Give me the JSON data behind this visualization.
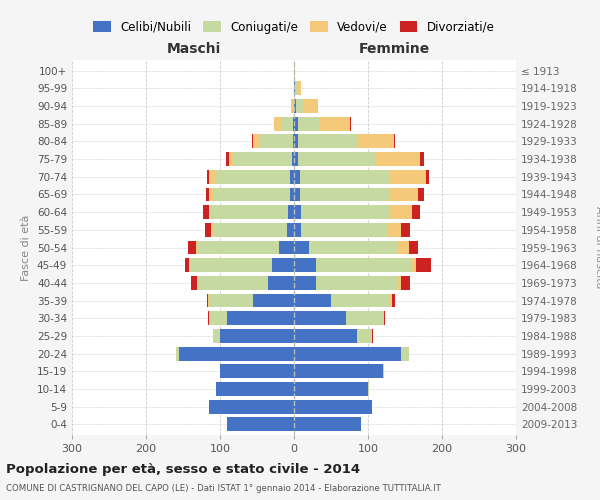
{
  "age_groups": [
    "0-4",
    "5-9",
    "10-14",
    "15-19",
    "20-24",
    "25-29",
    "30-34",
    "35-39",
    "40-44",
    "45-49",
    "50-54",
    "55-59",
    "60-64",
    "65-69",
    "70-74",
    "75-79",
    "80-84",
    "85-89",
    "90-94",
    "95-99",
    "100+"
  ],
  "birth_years": [
    "2009-2013",
    "2004-2008",
    "1999-2003",
    "1994-1998",
    "1989-1993",
    "1984-1988",
    "1979-1983",
    "1974-1978",
    "1969-1973",
    "1964-1968",
    "1959-1963",
    "1954-1958",
    "1949-1953",
    "1944-1948",
    "1939-1943",
    "1934-1938",
    "1929-1933",
    "1924-1928",
    "1919-1923",
    "1914-1918",
    "≤ 1913"
  ],
  "males": {
    "coniugato": [
      0,
      0,
      0,
      0,
      5,
      10,
      25,
      60,
      95,
      110,
      110,
      100,
      105,
      105,
      100,
      80,
      45,
      15,
      2,
      0,
      0
    ],
    "celibe": [
      90,
      115,
      105,
      100,
      155,
      100,
      90,
      55,
      35,
      30,
      20,
      10,
      8,
      5,
      5,
      3,
      2,
      2,
      0,
      0,
      0
    ],
    "vedovo": [
      0,
      0,
      0,
      0,
      0,
      0,
      0,
      1,
      1,
      2,
      3,
      2,
      2,
      5,
      10,
      5,
      8,
      10,
      2,
      0,
      0
    ],
    "divorziato": [
      0,
      0,
      0,
      0,
      0,
      0,
      1,
      2,
      8,
      5,
      10,
      8,
      8,
      4,
      2,
      4,
      2,
      0,
      0,
      0,
      0
    ]
  },
  "females": {
    "coniugata": [
      0,
      0,
      1,
      2,
      10,
      20,
      50,
      80,
      110,
      130,
      120,
      115,
      120,
      120,
      120,
      105,
      80,
      30,
      10,
      2,
      1
    ],
    "nubile": [
      90,
      105,
      100,
      120,
      145,
      85,
      70,
      50,
      30,
      30,
      20,
      10,
      10,
      8,
      8,
      5,
      5,
      5,
      3,
      2,
      0
    ],
    "vedova": [
      0,
      0,
      0,
      0,
      0,
      1,
      1,
      2,
      5,
      5,
      15,
      20,
      30,
      40,
      50,
      60,
      50,
      40,
      20,
      5,
      1
    ],
    "divorziata": [
      0,
      0,
      0,
      0,
      0,
      1,
      2,
      5,
      12,
      20,
      12,
      12,
      10,
      8,
      5,
      5,
      2,
      2,
      0,
      0,
      0
    ]
  },
  "colors": {
    "celibe": "#4472C4",
    "coniugato": "#c5d9a0",
    "vedovo": "#f4c97a",
    "divorziato": "#cc2222"
  },
  "xlim": 300,
  "title": "Popolazione per età, sesso e stato civile - 2014",
  "subtitle": "COMUNE DI CASTRIGNANO DEL CAPO (LE) - Dati ISTAT 1° gennaio 2014 - Elaborazione TUTTITALIA.IT",
  "ylabel": "Fasce di età",
  "ylabel_right": "Anni di nascita",
  "legend_labels": [
    "Celibi/Nubili",
    "Coniugati/e",
    "Vedovi/e",
    "Divorziati/e"
  ],
  "bg_color": "#f5f5f5",
  "plot_bg": "#ffffff",
  "grid_color": "#cccccc"
}
